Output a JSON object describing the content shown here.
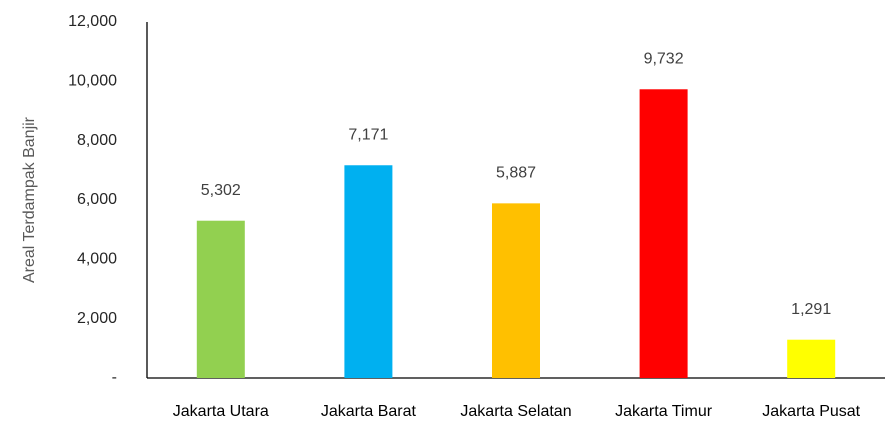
{
  "chart_data": {
    "type": "bar",
    "y_label": "Areal Terdampak Banjir",
    "categories": [
      "Jakarta Utara",
      "Jakarta Barat",
      "Jakarta Selatan",
      "Jakarta Timur",
      "Jakarta Pusat"
    ],
    "values": [
      5302,
      7171,
      5887,
      9732,
      1291
    ],
    "value_labels": [
      "5,302",
      "7,171",
      "5,887",
      "9,732",
      "1,291"
    ],
    "colors": [
      "#92d050",
      "#00b0f0",
      "#ffc000",
      "#ff0000",
      "#ffff00"
    ],
    "ylim": [
      0,
      12000
    ],
    "yticks": [
      {
        "value": 0,
        "label": "-"
      },
      {
        "value": 2000,
        "label": "2,000"
      },
      {
        "value": 4000,
        "label": "4,000"
      },
      {
        "value": 6000,
        "label": "6,000"
      },
      {
        "value": 8000,
        "label": "8,000"
      },
      {
        "value": 10000,
        "label": "10,000"
      },
      {
        "value": 12000,
        "label": "12,000"
      }
    ],
    "grid": false
  }
}
